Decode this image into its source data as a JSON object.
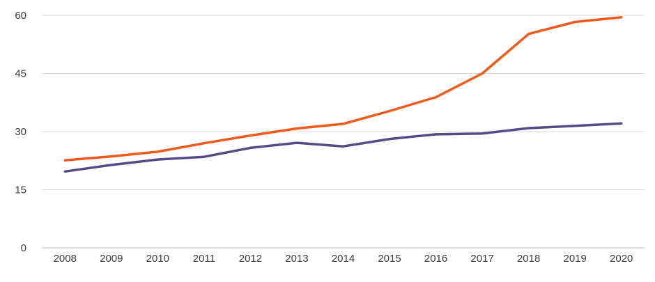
{
  "chart_data": {
    "type": "line",
    "x": [
      "2008",
      "2009",
      "2010",
      "2011",
      "2012",
      "2013",
      "2014",
      "2015",
      "2016",
      "2017",
      "2018",
      "2019",
      "2020"
    ],
    "series": [
      {
        "color": "#f05a1a",
        "values": [
          22.6,
          23.6,
          24.8,
          27.0,
          29.0,
          30.8,
          32.0,
          35.3,
          38.9,
          45.0,
          55.2,
          58.3,
          59.5
        ]
      },
      {
        "color": "#574b87",
        "values": [
          19.7,
          21.4,
          22.8,
          23.5,
          25.8,
          27.1,
          26.2,
          28.1,
          29.3,
          29.5,
          30.9,
          31.5,
          32.1
        ]
      }
    ],
    "yticks": [
      "0",
      "15",
      "30",
      "45",
      "60"
    ],
    "ylim": [
      0,
      60
    ],
    "grid": true,
    "title": "",
    "xlabel": "",
    "ylabel": ""
  }
}
